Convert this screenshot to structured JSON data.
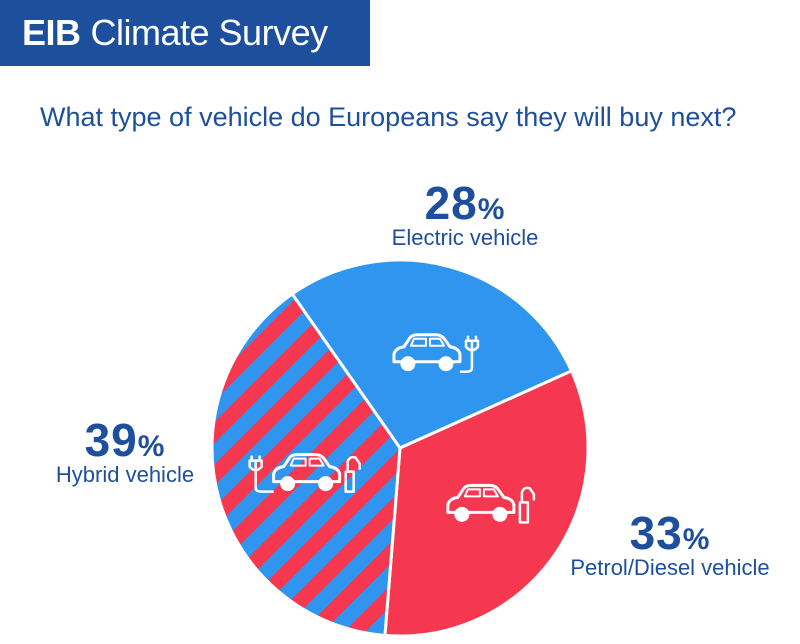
{
  "header": {
    "brand": "EIB",
    "title": "Climate Survey"
  },
  "colors": {
    "accent": "#1d4f9c",
    "electric": "#2f95ef",
    "petrol": "#f5374f",
    "stripe_red": "#f5374f",
    "stripe_blue": "#2f95ef"
  },
  "chart_data": {
    "type": "pie",
    "title": "What type of vehicle do Europeans say they will buy next?",
    "slices": [
      {
        "label": "Electric vehicle",
        "value": 28,
        "pct_text": "28",
        "icon": "electric-car-icon"
      },
      {
        "label": "Petrol/Diesel vehicle",
        "value": 33,
        "pct_text": "33",
        "icon": "petrol-car-icon"
      },
      {
        "label": "Hybrid vehicle",
        "value": 39,
        "pct_text": "39",
        "icon": "hybrid-car-icon"
      }
    ],
    "percent_symbol": "%"
  }
}
